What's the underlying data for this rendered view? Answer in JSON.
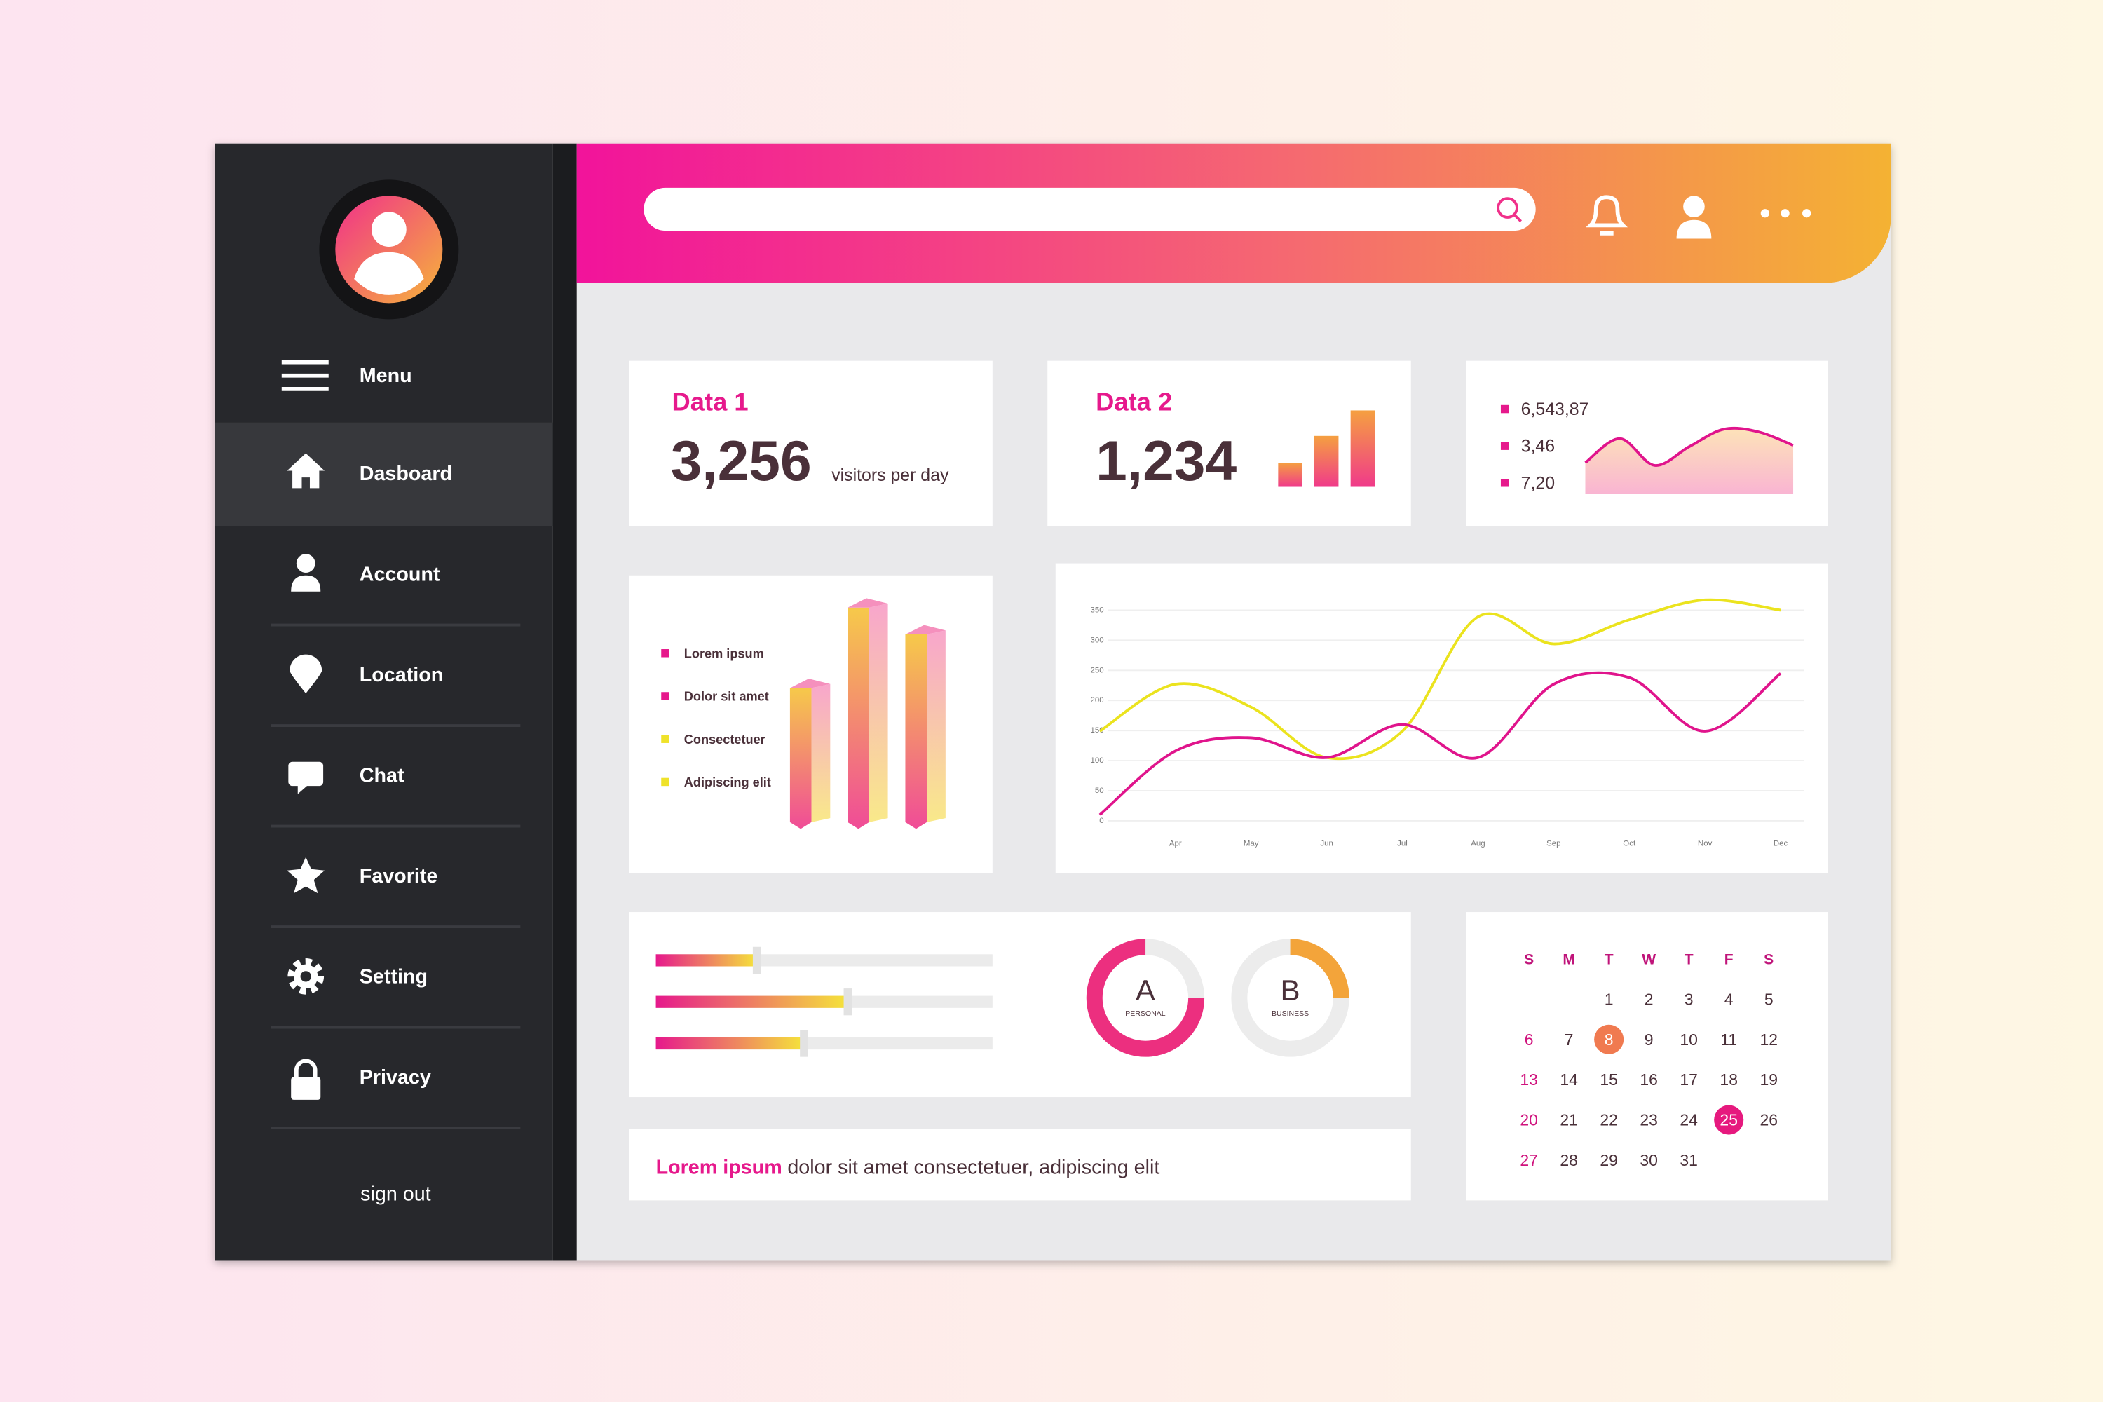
{
  "sidebar": {
    "menu": "Menu",
    "items": [
      "Dasboard",
      "Account",
      "Location",
      "Chat",
      "Favorite",
      "Setting",
      "Privacy"
    ],
    "sign_out": "sign out"
  },
  "data1": {
    "title": "Data 1",
    "value": "3,256",
    "unit": "visitors per day"
  },
  "data2": {
    "title": "Data 2",
    "value": "1,234",
    "bars": [
      18,
      38,
      57
    ]
  },
  "stats": {
    "labels": [
      "6,543,87",
      "3,46",
      "7,20"
    ],
    "area": [
      23,
      41,
      21,
      35,
      48,
      46,
      36
    ]
  },
  "bar3d": {
    "legend": [
      {
        "name": "Lorem ipsum",
        "color": "#e6198c"
      },
      {
        "name": "Dolor sit amet",
        "color": "#e6198c"
      },
      {
        "name": "Consectetuer",
        "color": "#efe22a"
      },
      {
        "name": "Adipiscing elit",
        "color": "#efe22a"
      }
    ],
    "values": [
      100,
      160,
      140
    ]
  },
  "line_chart": {
    "type": "line",
    "categories": [
      null,
      "Apr",
      "May",
      "Jun",
      "Jul",
      "Aug",
      "Sep",
      "Oct",
      "Nov",
      "Dec"
    ],
    "series": [
      {
        "color": "#ebe31e",
        "values": [
          149,
          227,
          189,
          105,
          149,
          339,
          294,
          334,
          367,
          350
        ]
      },
      {
        "color": "#e0148c",
        "values": [
          10,
          116,
          138,
          105,
          160,
          105,
          227,
          238,
          149,
          245
        ]
      }
    ],
    "ylim": [
      0,
      390
    ],
    "yticks": [
      0,
      50,
      100,
      150,
      200,
      250,
      300,
      350
    ],
    "grid": true
  },
  "sliders": {
    "values": [
      30,
      57,
      44
    ]
  },
  "donuts": [
    {
      "letter": "A",
      "label": "PERSONAL",
      "value": 75,
      "color": "#ec2f7f"
    },
    {
      "letter": "B",
      "label": "BUSINESS",
      "value": 25,
      "color": "#f3a43a"
    }
  ],
  "calendar": {
    "weekdays": [
      "S",
      "M",
      "T",
      "W",
      "T",
      "F",
      "S"
    ],
    "days": [
      1,
      2,
      3,
      4,
      5,
      6,
      7,
      8,
      9,
      10,
      11,
      12,
      13,
      14,
      15,
      16,
      17,
      18,
      19,
      20,
      21,
      22,
      23,
      24,
      25,
      26,
      27,
      28,
      29,
      30,
      31
    ],
    "marked_days": [
      8,
      25
    ],
    "marked_colors": [
      "#f07a50",
      "#e6197e"
    ]
  },
  "footer_note": {
    "highlight": "Lorem ipsum",
    "text": "dolor sit amet consectetuer, adipiscing elit"
  }
}
